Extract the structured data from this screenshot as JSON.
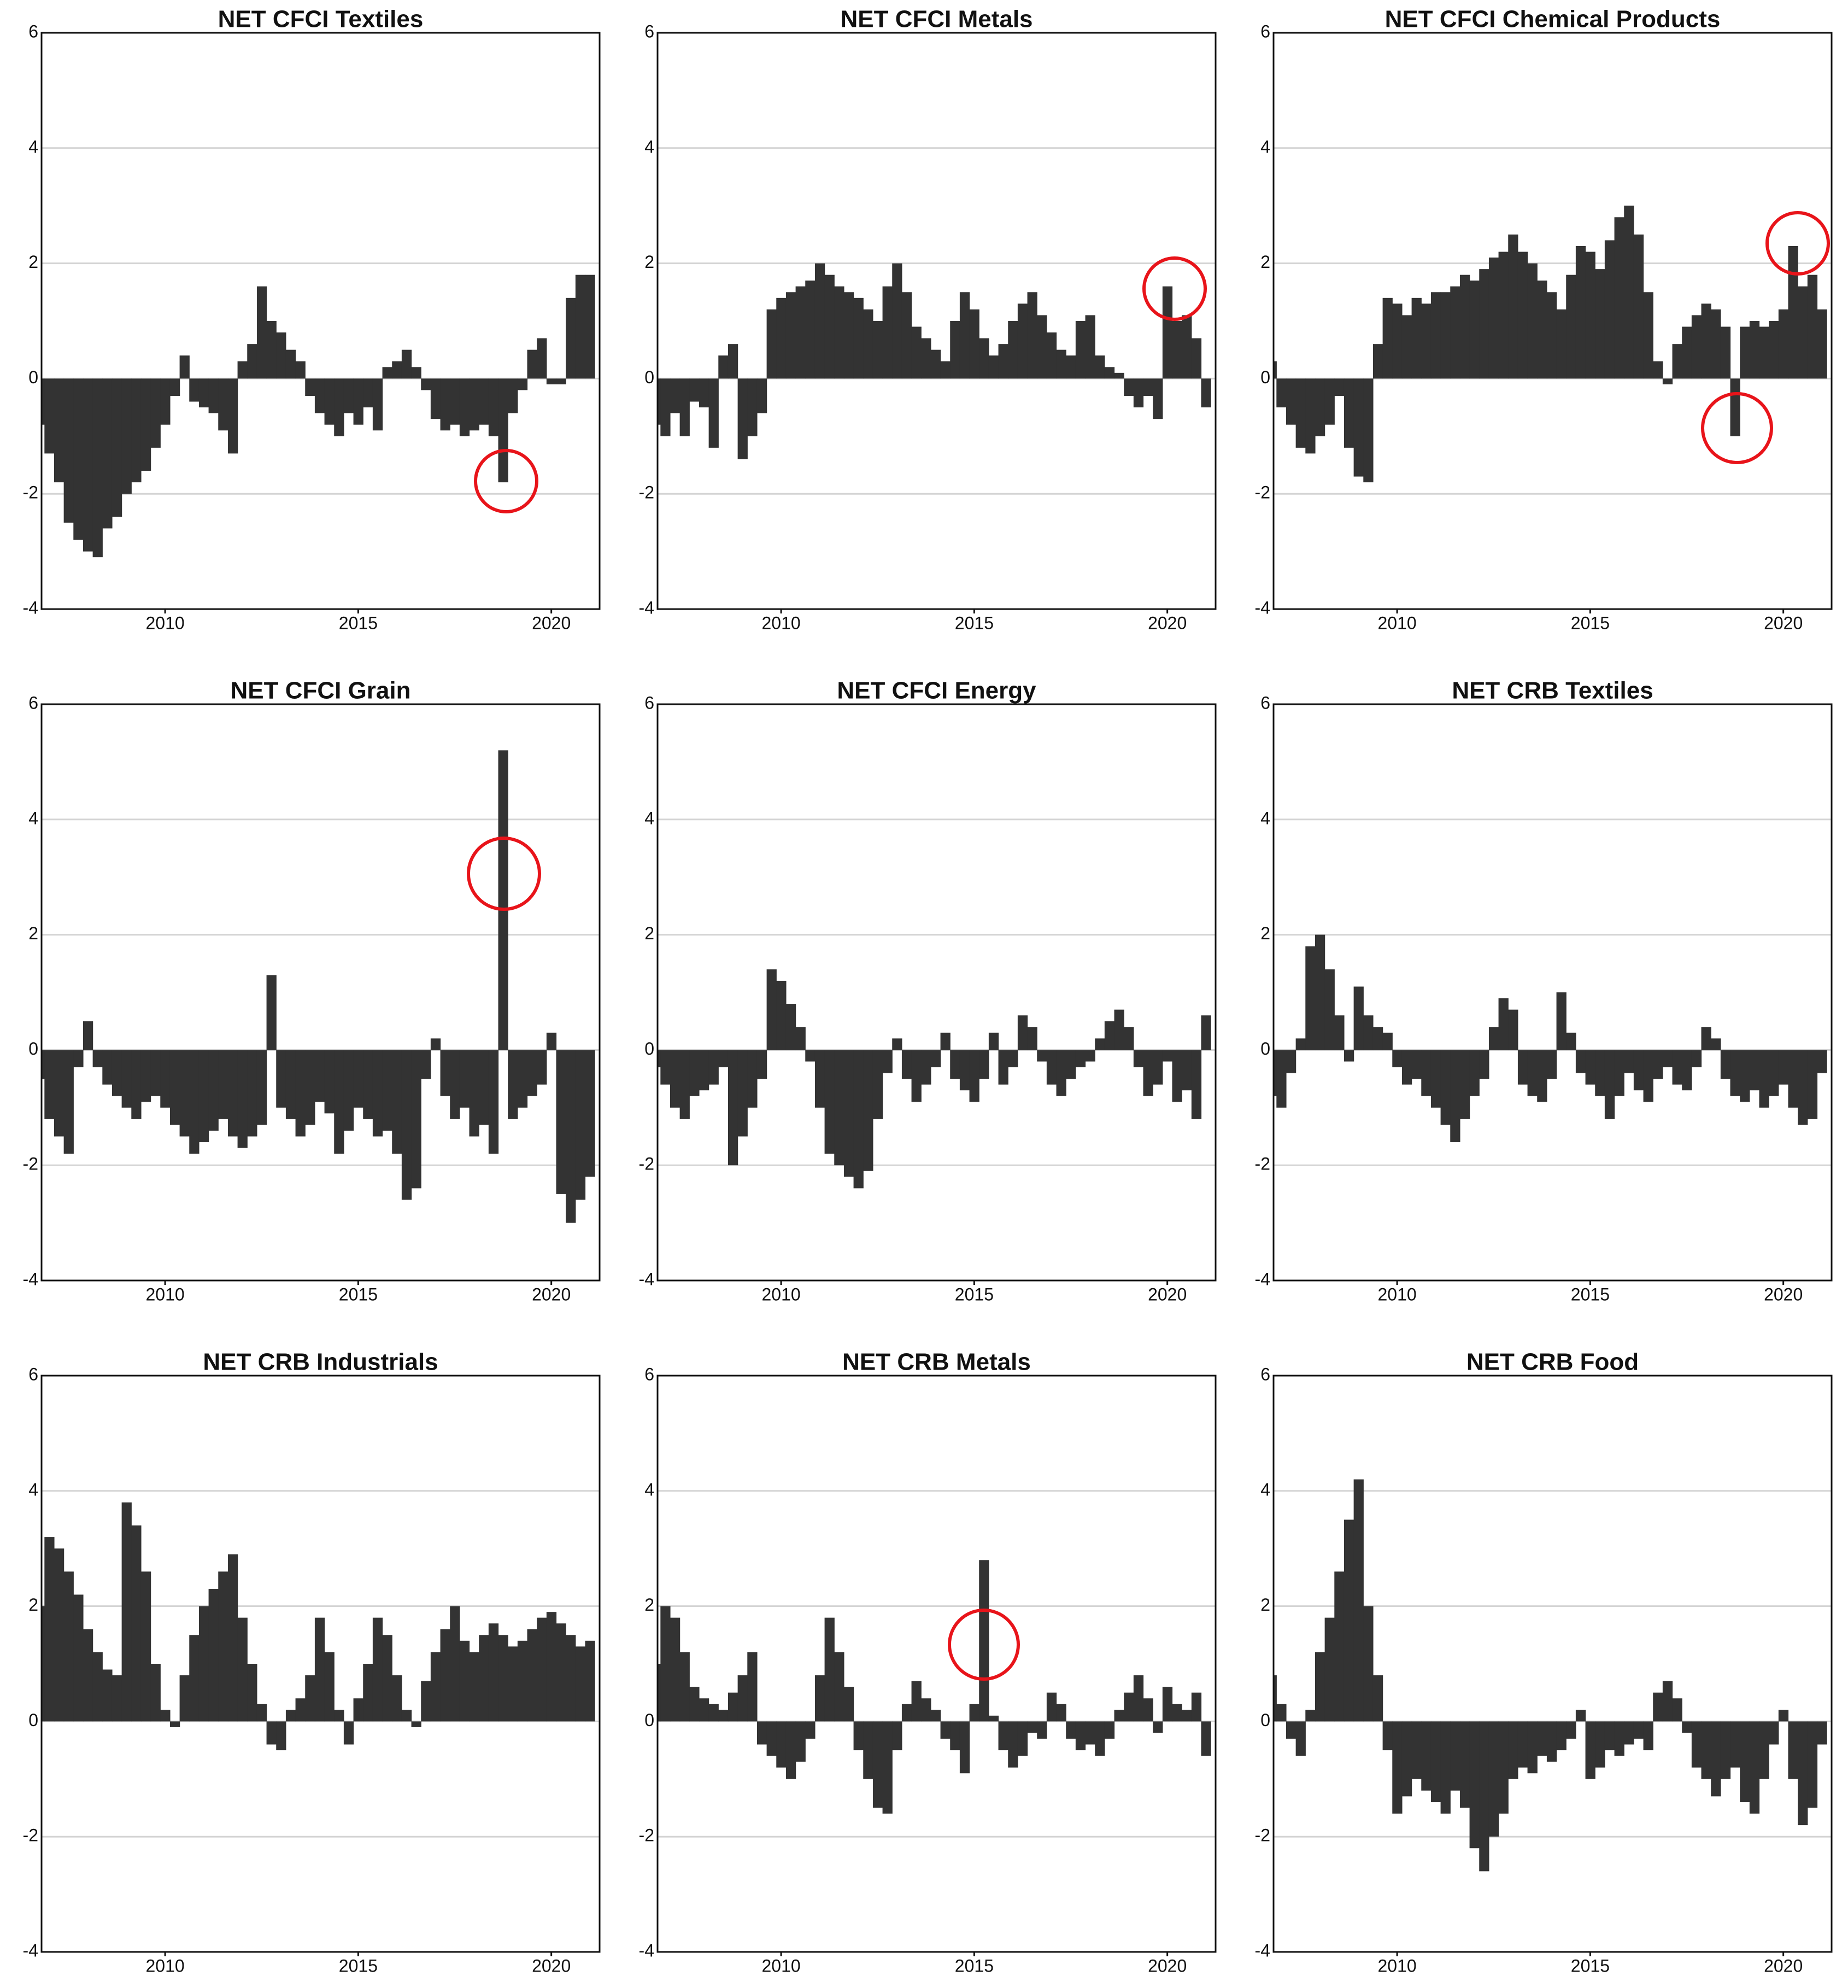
{
  "chart_data": [
    {
      "type": "bar",
      "title": "NET CFCI Textiles",
      "color": "#333333",
      "grid": true,
      "xlim": [
        2006.8,
        2021.25
      ],
      "xticks": [
        2010,
        2015,
        2020
      ],
      "ylim": [
        -4,
        6
      ],
      "yticks": [
        -4,
        -2,
        0,
        2,
        4,
        6
      ],
      "x": [
        2006.75,
        2007,
        2007.25,
        2007.5,
        2007.75,
        2008,
        2008.25,
        2008.5,
        2008.75,
        2009,
        2009.25,
        2009.5,
        2009.75,
        2010,
        2010.25,
        2010.5,
        2010.75,
        2011,
        2011.25,
        2011.5,
        2011.75,
        2012,
        2012.25,
        2012.5,
        2012.75,
        2013,
        2013.25,
        2013.5,
        2013.75,
        2014,
        2014.25,
        2014.5,
        2014.75,
        2015,
        2015.25,
        2015.5,
        2015.75,
        2016,
        2016.25,
        2016.5,
        2016.75,
        2017,
        2017.25,
        2017.5,
        2017.75,
        2018,
        2018.25,
        2018.5,
        2018.75,
        2019,
        2019.25,
        2019.5,
        2019.75,
        2020,
        2020.25,
        2020.5,
        2020.75,
        2021
      ],
      "values": [
        -0.8,
        -1.3,
        -1.8,
        -2.5,
        -2.8,
        -3.0,
        -3.1,
        -2.6,
        -2.4,
        -2.0,
        -1.8,
        -1.6,
        -1.2,
        -0.8,
        -0.3,
        0.4,
        -0.4,
        -0.5,
        -0.6,
        -0.9,
        -1.3,
        0.3,
        0.6,
        1.6,
        1.0,
        0.8,
        0.5,
        0.3,
        -0.3,
        -0.6,
        -0.8,
        -1.0,
        -0.6,
        -0.8,
        -0.5,
        -0.9,
        0.2,
        0.3,
        0.5,
        0.2,
        -0.2,
        -0.7,
        -0.9,
        -0.8,
        -1.0,
        -0.9,
        -0.8,
        -1.0,
        -1.8,
        -0.6,
        -0.2,
        0.5,
        0.7,
        -0.1,
        -0.1,
        1.4,
        1.8,
        1.8
      ]
    },
    {
      "type": "bar",
      "title": "NET CFCI Metals",
      "color": "#333333",
      "grid": true,
      "xlim": [
        2006.8,
        2021.25
      ],
      "xticks": [
        2010,
        2015,
        2020
      ],
      "ylim": [
        -4,
        6
      ],
      "yticks": [
        -4,
        -2,
        0,
        2,
        4,
        6
      ],
      "x": [
        2006.75,
        2007,
        2007.25,
        2007.5,
        2007.75,
        2008,
        2008.25,
        2008.5,
        2008.75,
        2009,
        2009.25,
        2009.5,
        2009.75,
        2010,
        2010.25,
        2010.5,
        2010.75,
        2011,
        2011.25,
        2011.5,
        2011.75,
        2012,
        2012.25,
        2012.5,
        2012.75,
        2013,
        2013.25,
        2013.5,
        2013.75,
        2014,
        2014.25,
        2014.5,
        2014.75,
        2015,
        2015.25,
        2015.5,
        2015.75,
        2016,
        2016.25,
        2016.5,
        2016.75,
        2017,
        2017.25,
        2017.5,
        2017.75,
        2018,
        2018.25,
        2018.5,
        2018.75,
        2019,
        2019.25,
        2019.5,
        2019.75,
        2020,
        2020.25,
        2020.5,
        2020.75,
        2021
      ],
      "values": [
        -0.8,
        -1.0,
        -0.6,
        -1.0,
        -0.4,
        -0.5,
        -1.2,
        0.4,
        0.6,
        -1.4,
        -1.0,
        -0.6,
        1.2,
        1.4,
        1.5,
        1.6,
        1.7,
        2.0,
        1.8,
        1.6,
        1.5,
        1.4,
        1.2,
        1.0,
        1.6,
        2.0,
        1.5,
        0.9,
        0.7,
        0.5,
        0.3,
        1.0,
        1.5,
        1.2,
        0.7,
        0.4,
        0.6,
        1.0,
        1.3,
        1.5,
        1.1,
        0.8,
        0.5,
        0.4,
        1.0,
        1.1,
        0.4,
        0.2,
        0.1,
        -0.3,
        -0.5,
        -0.3,
        -0.7,
        1.6,
        1.0,
        1.1,
        0.7,
        -0.5
      ]
    },
    {
      "type": "bar",
      "title": "NET CFCI Chemical Products",
      "color": "#333333",
      "grid": true,
      "xlim": [
        2006.8,
        2021.25
      ],
      "xticks": [
        2010,
        2015,
        2020
      ],
      "ylim": [
        -4,
        6
      ],
      "yticks": [
        -4,
        -2,
        0,
        2,
        4,
        6
      ],
      "x": [
        2006.75,
        2007,
        2007.25,
        2007.5,
        2007.75,
        2008,
        2008.25,
        2008.5,
        2008.75,
        2009,
        2009.25,
        2009.5,
        2009.75,
        2010,
        2010.25,
        2010.5,
        2010.75,
        2011,
        2011.25,
        2011.5,
        2011.75,
        2012,
        2012.25,
        2012.5,
        2012.75,
        2013,
        2013.25,
        2013.5,
        2013.75,
        2014,
        2014.25,
        2014.5,
        2014.75,
        2015,
        2015.25,
        2015.5,
        2015.75,
        2016,
        2016.25,
        2016.5,
        2016.75,
        2017,
        2017.25,
        2017.5,
        2017.75,
        2018,
        2018.25,
        2018.5,
        2018.75,
        2019,
        2019.25,
        2019.5,
        2019.75,
        2020,
        2020.25,
        2020.5,
        2020.75,
        2021
      ],
      "values": [
        0.3,
        -0.5,
        -0.8,
        -1.2,
        -1.3,
        -1.0,
        -0.8,
        -0.3,
        -1.2,
        -1.7,
        -1.8,
        0.6,
        1.4,
        1.3,
        1.1,
        1.4,
        1.3,
        1.5,
        1.5,
        1.6,
        1.8,
        1.7,
        1.9,
        2.1,
        2.2,
        2.5,
        2.2,
        2.0,
        1.7,
        1.5,
        1.2,
        1.8,
        2.3,
        2.2,
        1.9,
        2.4,
        2.8,
        3.0,
        2.5,
        1.5,
        0.3,
        -0.1,
        0.6,
        0.9,
        1.1,
        1.3,
        1.2,
        0.9,
        -1.0,
        0.9,
        1.0,
        0.9,
        1.0,
        1.2,
        2.3,
        1.6,
        1.8,
        1.2
      ]
    },
    {
      "type": "bar",
      "title": "NET CFCI Grain",
      "color": "#333333",
      "grid": true,
      "xlim": [
        2006.8,
        2021.25
      ],
      "xticks": [
        2010,
        2015,
        2020
      ],
      "ylim": [
        -4,
        6
      ],
      "yticks": [
        -4,
        -2,
        0,
        2,
        4,
        6
      ],
      "x": [
        2006.75,
        2007,
        2007.25,
        2007.5,
        2007.75,
        2008,
        2008.25,
        2008.5,
        2008.75,
        2009,
        2009.25,
        2009.5,
        2009.75,
        2010,
        2010.25,
        2010.5,
        2010.75,
        2011,
        2011.25,
        2011.5,
        2011.75,
        2012,
        2012.25,
        2012.5,
        2012.75,
        2013,
        2013.25,
        2013.5,
        2013.75,
        2014,
        2014.25,
        2014.5,
        2014.75,
        2015,
        2015.25,
        2015.5,
        2015.75,
        2016,
        2016.25,
        2016.5,
        2016.75,
        2017,
        2017.25,
        2017.5,
        2017.75,
        2018,
        2018.25,
        2018.5,
        2018.75,
        2019,
        2019.25,
        2019.5,
        2019.75,
        2020,
        2020.25,
        2020.5,
        2020.75,
        2021
      ],
      "values": [
        -0.5,
        -1.2,
        -1.5,
        -1.8,
        -0.3,
        0.5,
        -0.3,
        -0.6,
        -0.8,
        -1.0,
        -1.2,
        -0.9,
        -0.8,
        -1.0,
        -1.3,
        -1.5,
        -1.8,
        -1.6,
        -1.4,
        -1.2,
        -1.5,
        -1.7,
        -1.5,
        -1.3,
        1.3,
        -1.0,
        -1.2,
        -1.5,
        -1.3,
        -0.9,
        -1.1,
        -1.8,
        -1.4,
        -1.0,
        -1.2,
        -1.5,
        -1.4,
        -1.8,
        -2.6,
        -2.4,
        -0.5,
        0.2,
        -0.8,
        -1.2,
        -1.0,
        -1.5,
        -1.3,
        -1.8,
        5.2,
        -1.2,
        -1.0,
        -0.8,
        -0.6,
        0.3,
        -2.5,
        -3.0,
        -2.6,
        -2.2
      ]
    },
    {
      "type": "bar",
      "title": "NET CFCI Energy",
      "color": "#333333",
      "grid": true,
      "xlim": [
        2006.8,
        2021.25
      ],
      "xticks": [
        2010,
        2015,
        2020
      ],
      "ylim": [
        -4,
        6
      ],
      "yticks": [
        -4,
        -2,
        0,
        2,
        4,
        6
      ],
      "x": [
        2006.75,
        2007,
        2007.25,
        2007.5,
        2007.75,
        2008,
        2008.25,
        2008.5,
        2008.75,
        2009,
        2009.25,
        2009.5,
        2009.75,
        2010,
        2010.25,
        2010.5,
        2010.75,
        2011,
        2011.25,
        2011.5,
        2011.75,
        2012,
        2012.25,
        2012.5,
        2012.75,
        2013,
        2013.25,
        2013.5,
        2013.75,
        2014,
        2014.25,
        2014.5,
        2014.75,
        2015,
        2015.25,
        2015.5,
        2015.75,
        2016,
        2016.25,
        2016.5,
        2016.75,
        2017,
        2017.25,
        2017.5,
        2017.75,
        2018,
        2018.25,
        2018.5,
        2018.75,
        2019,
        2019.25,
        2019.5,
        2019.75,
        2020,
        2020.25,
        2020.5,
        2020.75,
        2021
      ],
      "values": [
        -0.3,
        -0.6,
        -1.0,
        -1.2,
        -0.8,
        -0.7,
        -0.6,
        -0.3,
        -2.0,
        -1.5,
        -1.0,
        -0.5,
        1.4,
        1.2,
        0.8,
        0.4,
        -0.2,
        -1.0,
        -1.8,
        -2.0,
        -2.2,
        -2.4,
        -2.1,
        -1.2,
        -0.4,
        0.2,
        -0.5,
        -0.9,
        -0.6,
        -0.3,
        0.3,
        -0.5,
        -0.7,
        -0.9,
        -0.5,
        0.3,
        -0.6,
        -0.3,
        0.6,
        0.4,
        -0.2,
        -0.6,
        -0.8,
        -0.5,
        -0.3,
        -0.2,
        0.2,
        0.5,
        0.7,
        0.4,
        -0.3,
        -0.8,
        -0.6,
        -0.2,
        -0.9,
        -0.7,
        -1.2,
        0.6
      ]
    },
    {
      "type": "bar",
      "title": "NET CRB Textiles",
      "color": "#333333",
      "grid": true,
      "xlim": [
        2006.8,
        2021.25
      ],
      "xticks": [
        2010,
        2015,
        2020
      ],
      "ylim": [
        -4,
        6
      ],
      "yticks": [
        -4,
        -2,
        0,
        2,
        4,
        6
      ],
      "x": [
        2006.75,
        2007,
        2007.25,
        2007.5,
        2007.75,
        2008,
        2008.25,
        2008.5,
        2008.75,
        2009,
        2009.25,
        2009.5,
        2009.75,
        2010,
        2010.25,
        2010.5,
        2010.75,
        2011,
        2011.25,
        2011.5,
        2011.75,
        2012,
        2012.25,
        2012.5,
        2012.75,
        2013,
        2013.25,
        2013.5,
        2013.75,
        2014,
        2014.25,
        2014.5,
        2014.75,
        2015,
        2015.25,
        2015.5,
        2015.75,
        2016,
        2016.25,
        2016.5,
        2016.75,
        2017,
        2017.25,
        2017.5,
        2017.75,
        2018,
        2018.25,
        2018.5,
        2018.75,
        2019,
        2019.25,
        2019.5,
        2019.75,
        2020,
        2020.25,
        2020.5,
        2020.75,
        2021
      ],
      "values": [
        -0.8,
        -1.0,
        -0.4,
        0.2,
        1.8,
        2.0,
        1.4,
        0.6,
        -0.2,
        1.1,
        0.6,
        0.4,
        0.3,
        -0.3,
        -0.6,
        -0.5,
        -0.8,
        -1.0,
        -1.3,
        -1.6,
        -1.2,
        -0.8,
        -0.5,
        0.4,
        0.9,
        0.7,
        -0.6,
        -0.8,
        -0.9,
        -0.5,
        1.0,
        0.3,
        -0.4,
        -0.6,
        -0.8,
        -1.2,
        -0.8,
        -0.4,
        -0.7,
        -0.9,
        -0.5,
        -0.3,
        -0.6,
        -0.7,
        -0.3,
        0.4,
        0.2,
        -0.5,
        -0.8,
        -0.9,
        -0.7,
        -1.0,
        -0.8,
        -0.6,
        -1.0,
        -1.3,
        -1.2,
        -0.4
      ]
    },
    {
      "type": "bar",
      "title": "NET CRB Industrials",
      "color": "#333333",
      "grid": true,
      "xlim": [
        2006.8,
        2021.25
      ],
      "xticks": [
        2010,
        2015,
        2020
      ],
      "ylim": [
        -4,
        6
      ],
      "yticks": [
        -4,
        -2,
        0,
        2,
        4,
        6
      ],
      "x": [
        2006.75,
        2007,
        2007.25,
        2007.5,
        2007.75,
        2008,
        2008.25,
        2008.5,
        2008.75,
        2009,
        2009.25,
        2009.5,
        2009.75,
        2010,
        2010.25,
        2010.5,
        2010.75,
        2011,
        2011.25,
        2011.5,
        2011.75,
        2012,
        2012.25,
        2012.5,
        2012.75,
        2013,
        2013.25,
        2013.5,
        2013.75,
        2014,
        2014.25,
        2014.5,
        2014.75,
        2015,
        2015.25,
        2015.5,
        2015.75,
        2016,
        2016.25,
        2016.5,
        2016.75,
        2017,
        2017.25,
        2017.5,
        2017.75,
        2018,
        2018.25,
        2018.5,
        2018.75,
        2019,
        2019.25,
        2019.5,
        2019.75,
        2020,
        2020.25,
        2020.5,
        2020.75,
        2021
      ],
      "values": [
        2.0,
        3.2,
        3.0,
        2.6,
        2.2,
        1.6,
        1.2,
        0.9,
        0.8,
        3.8,
        3.4,
        2.6,
        1.0,
        0.2,
        -0.1,
        0.8,
        1.5,
        2.0,
        2.3,
        2.6,
        2.9,
        1.8,
        1.0,
        0.3,
        -0.4,
        -0.5,
        0.2,
        0.4,
        0.8,
        1.8,
        1.2,
        0.2,
        -0.4,
        0.4,
        1.0,
        1.8,
        1.5,
        0.8,
        0.2,
        -0.1,
        0.7,
        1.2,
        1.6,
        2.0,
        1.4,
        1.2,
        1.5,
        1.7,
        1.5,
        1.3,
        1.4,
        1.6,
        1.8,
        1.9,
        1.7,
        1.5,
        1.3,
        1.4
      ]
    },
    {
      "type": "bar",
      "title": "NET CRB Metals",
      "color": "#333333",
      "grid": true,
      "xlim": [
        2006.8,
        2021.25
      ],
      "xticks": [
        2010,
        2015,
        2020
      ],
      "ylim": [
        -4,
        6
      ],
      "yticks": [
        -4,
        -2,
        0,
        2,
        4,
        6
      ],
      "x": [
        2006.75,
        2007,
        2007.25,
        2007.5,
        2007.75,
        2008,
        2008.25,
        2008.5,
        2008.75,
        2009,
        2009.25,
        2009.5,
        2009.75,
        2010,
        2010.25,
        2010.5,
        2010.75,
        2011,
        2011.25,
        2011.5,
        2011.75,
        2012,
        2012.25,
        2012.5,
        2012.75,
        2013,
        2013.25,
        2013.5,
        2013.75,
        2014,
        2014.25,
        2014.5,
        2014.75,
        2015,
        2015.25,
        2015.5,
        2015.75,
        2016,
        2016.25,
        2016.5,
        2016.75,
        2017,
        2017.25,
        2017.5,
        2017.75,
        2018,
        2018.25,
        2018.5,
        2018.75,
        2019,
        2019.25,
        2019.5,
        2019.75,
        2020,
        2020.25,
        2020.5,
        2020.75,
        2021
      ],
      "values": [
        1.0,
        2.0,
        1.8,
        1.2,
        0.6,
        0.4,
        0.3,
        0.2,
        0.5,
        0.8,
        1.2,
        -0.4,
        -0.6,
        -0.8,
        -1.0,
        -0.7,
        -0.3,
        0.8,
        1.8,
        1.2,
        0.6,
        -0.5,
        -1.0,
        -1.5,
        -1.6,
        -0.5,
        0.3,
        0.7,
        0.4,
        0.2,
        -0.3,
        -0.5,
        -0.9,
        0.3,
        2.8,
        0.1,
        -0.5,
        -0.8,
        -0.6,
        -0.2,
        -0.3,
        0.5,
        0.3,
        -0.3,
        -0.5,
        -0.4,
        -0.6,
        -0.3,
        0.2,
        0.5,
        0.8,
        0.4,
        -0.2,
        0.6,
        0.3,
        0.2,
        0.5,
        -0.6
      ]
    },
    {
      "type": "bar",
      "title": "NET CRB Food",
      "color": "#333333",
      "grid": true,
      "xlim": [
        2006.8,
        2021.25
      ],
      "xticks": [
        2010,
        2015,
        2020
      ],
      "ylim": [
        -4,
        6
      ],
      "yticks": [
        -4,
        -2,
        0,
        2,
        4,
        6
      ],
      "x": [
        2006.75,
        2007,
        2007.25,
        2007.5,
        2007.75,
        2008,
        2008.25,
        2008.5,
        2008.75,
        2009,
        2009.25,
        2009.5,
        2009.75,
        2010,
        2010.25,
        2010.5,
        2010.75,
        2011,
        2011.25,
        2011.5,
        2011.75,
        2012,
        2012.25,
        2012.5,
        2012.75,
        2013,
        2013.25,
        2013.5,
        2013.75,
        2014,
        2014.25,
        2014.5,
        2014.75,
        2015,
        2015.25,
        2015.5,
        2015.75,
        2016,
        2016.25,
        2016.5,
        2016.75,
        2017,
        2017.25,
        2017.5,
        2017.75,
        2018,
        2018.25,
        2018.5,
        2018.75,
        2019,
        2019.25,
        2019.5,
        2019.75,
        2020,
        2020.25,
        2020.5,
        2020.75,
        2021
      ],
      "values": [
        0.8,
        0.3,
        -0.3,
        -0.6,
        0.2,
        1.2,
        1.8,
        2.6,
        3.5,
        4.2,
        2.0,
        0.8,
        -0.5,
        -1.6,
        -1.3,
        -1.0,
        -1.2,
        -1.4,
        -1.6,
        -1.2,
        -1.5,
        -2.2,
        -2.6,
        -2.0,
        -1.6,
        -1.0,
        -0.8,
        -0.9,
        -0.6,
        -0.7,
        -0.5,
        -0.3,
        0.2,
        -1.0,
        -0.8,
        -0.5,
        -0.6,
        -0.4,
        -0.3,
        -0.5,
        0.5,
        0.7,
        0.4,
        -0.2,
        -0.8,
        -1.0,
        -1.3,
        -1.0,
        -0.8,
        -1.4,
        -1.6,
        -1.0,
        -0.4,
        0.2,
        -1.0,
        -1.8,
        -1.5,
        -0.4
      ]
    }
  ]
}
